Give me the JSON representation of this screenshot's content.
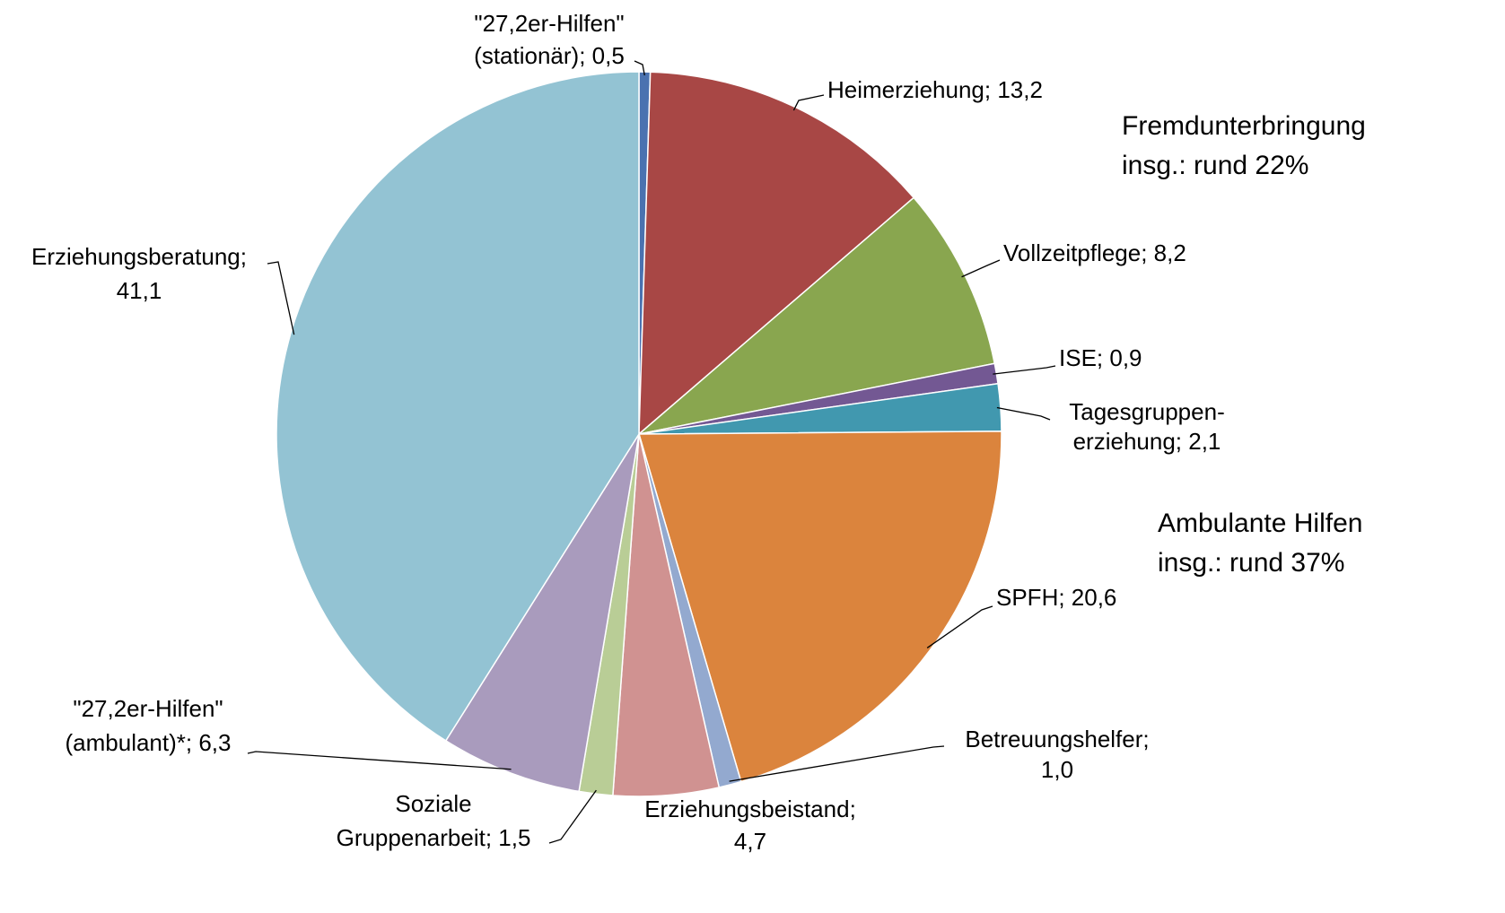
{
  "chart_data": {
    "type": "pie",
    "values": [
      0.5,
      13.2,
      8.2,
      0.9,
      2.1,
      20.6,
      1.0,
      4.7,
      1.5,
      6.3,
      41.1
    ],
    "value_labels": [
      [
        "\"27,2er-Hilfen\"",
        "(stationär); 0,5"
      ],
      [
        "Heimerziehung; 13,2"
      ],
      [
        "Vollzeitpflege; 8,2"
      ],
      [
        "ISE; 0,9"
      ],
      [
        "Tagesgruppen-",
        "erziehung; 2,1"
      ],
      [
        "SPFH; 20,6"
      ],
      [
        "Betreuungshelfer;",
        "1,0"
      ],
      [
        "Erziehungsbeistand;",
        "4,7"
      ],
      [
        "Soziale",
        "Gruppenarbeit; 1,5"
      ],
      [
        "\"27,2er-Hilfen\"",
        "(ambulant)*; 6,3"
      ],
      [
        "Erziehungsberatung;",
        "41,1"
      ]
    ],
    "colors": [
      "#4a72b0",
      "#a84745",
      "#89a64f",
      "#735893",
      "#4198af",
      "#db843d",
      "#93a9cf",
      "#d09291",
      "#b9cd96",
      "#a99bbd",
      "#93c3d3"
    ],
    "annotations": [
      [
        "Fremdunterbringung",
        "insg.:  rund 22%"
      ],
      [
        "Ambulante Hilfen",
        "insg.: rund 37%"
      ]
    ]
  }
}
